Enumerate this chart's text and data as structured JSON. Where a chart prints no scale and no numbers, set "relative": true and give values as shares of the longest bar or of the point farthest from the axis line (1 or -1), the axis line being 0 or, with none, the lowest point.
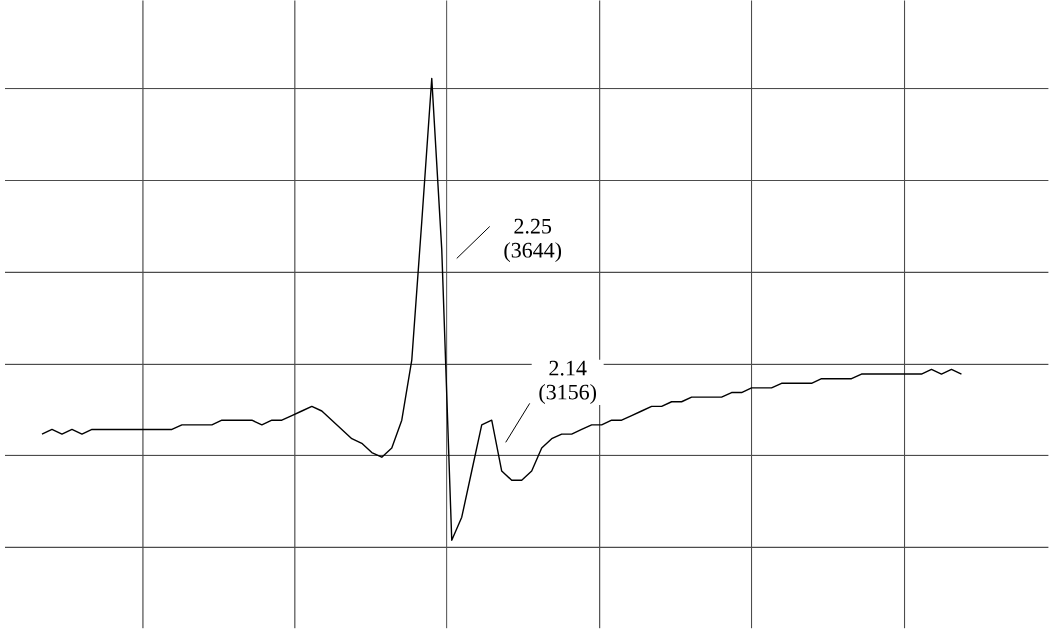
{
  "chart_data": {
    "type": "line",
    "relative": true,
    "grid": true,
    "color": "#000000",
    "categories": [
      null,
      null,
      null,
      null,
      null,
      null,
      null,
      null,
      null,
      null,
      null,
      null,
      null,
      null,
      null,
      null,
      null,
      null,
      null,
      null,
      null,
      null,
      null,
      null,
      null,
      null,
      null,
      null,
      null,
      null,
      null,
      null,
      null,
      null,
      null,
      null,
      null,
      null,
      null,
      null,
      null,
      null,
      null,
      null,
      null,
      null,
      null,
      null,
      null,
      null,
      null,
      null,
      null,
      null,
      null,
      null,
      null,
      null,
      null,
      null,
      null,
      null,
      null,
      null,
      null,
      null,
      null,
      null,
      null,
      null,
      null,
      null,
      null,
      null,
      null,
      null,
      null,
      null,
      null,
      null,
      null,
      null,
      null,
      null,
      null,
      null,
      null,
      null,
      null,
      null,
      null,
      null,
      null
    ],
    "values": [
      0.23,
      0.24,
      0.23,
      0.24,
      0.23,
      0.24,
      0.24,
      0.24,
      0.24,
      0.24,
      0.24,
      0.24,
      0.24,
      0.24,
      0.25,
      0.25,
      0.25,
      0.25,
      0.26,
      0.26,
      0.26,
      0.26,
      0.25,
      0.26,
      0.26,
      0.27,
      0.28,
      0.29,
      0.28,
      0.26,
      0.24,
      0.22,
      0.21,
      0.19,
      0.18,
      0.2,
      0.26,
      0.39,
      0.69,
      1.0,
      0.63,
      0.0,
      0.05,
      0.15,
      0.25,
      0.26,
      0.15,
      0.13,
      0.13,
      0.15,
      0.2,
      0.22,
      0.23,
      0.23,
      0.24,
      0.25,
      0.25,
      0.26,
      0.26,
      0.27,
      0.28,
      0.29,
      0.29,
      0.3,
      0.3,
      0.31,
      0.31,
      0.31,
      0.31,
      0.32,
      0.32,
      0.33,
      0.33,
      0.33,
      0.34,
      0.34,
      0.34,
      0.34,
      0.35,
      0.35,
      0.35,
      0.35,
      0.36,
      0.36,
      0.36,
      0.36,
      0.36,
      0.36,
      0.36,
      0.37,
      0.36,
      0.37,
      0.36
    ],
    "annotations": [
      "2.25 (3644)",
      "2.14 (3156)"
    ]
  }
}
